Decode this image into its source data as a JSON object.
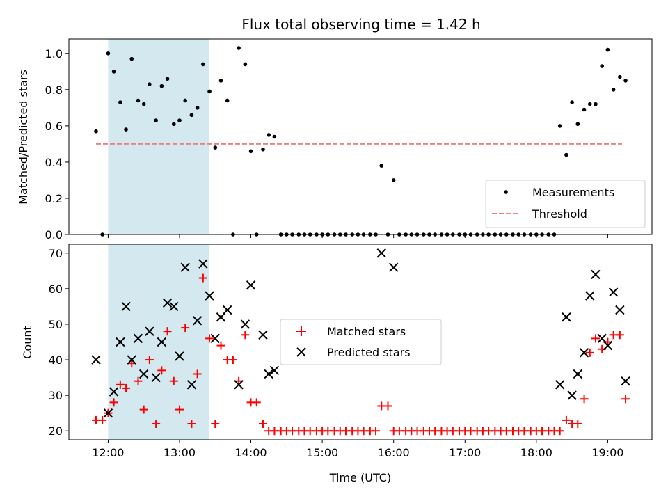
{
  "chart_data": {
    "title": "Flux total observing time = 1.42 h",
    "xlabel": "Time (UTC)",
    "x_tick_labels": [
      "12:00",
      "13:00",
      "14:00",
      "15:00",
      "16:00",
      "17:00",
      "18:00",
      "19:00"
    ],
    "x_ticks": [
      12,
      13,
      14,
      15,
      16,
      17,
      18,
      19
    ],
    "xlim": [
      11.45,
      19.62
    ],
    "shaded_interval": [
      12.0,
      13.42
    ],
    "shade_color": "#d3e9ef",
    "panels": [
      {
        "type": "scatter",
        "ylabel": "Matched/Predicted stars",
        "ylim": [
          0,
          1.08
        ],
        "y_ticks": [
          0.0,
          0.2,
          0.4,
          0.6,
          0.8,
          1.0
        ],
        "y_tick_labels": [
          "0.0",
          "0.2",
          "0.4",
          "0.6",
          "0.8",
          "1.0"
        ],
        "legend_position": "lower-right",
        "threshold": {
          "name": "Threshold",
          "value": 0.5,
          "x_range": [
            11.83,
            19.2
          ],
          "color": "#f08080"
        },
        "series": [
          {
            "name": "Measurements",
            "color": "#000000",
            "points": [
              [
                11.83,
                0.57
              ],
              [
                11.92,
                0
              ],
              [
                12.0,
                1.0
              ],
              [
                12.08,
                0.9
              ],
              [
                12.17,
                0.73
              ],
              [
                12.25,
                0.58
              ],
              [
                12.33,
                0.97
              ],
              [
                12.42,
                0.74
              ],
              [
                12.5,
                0.72
              ],
              [
                12.58,
                0.83
              ],
              [
                12.67,
                0.63
              ],
              [
                12.75,
                0.82
              ],
              [
                12.83,
                0.86
              ],
              [
                12.92,
                0.61
              ],
              [
                13.0,
                0.63
              ],
              [
                13.08,
                0.74
              ],
              [
                13.17,
                0.66
              ],
              [
                13.25,
                0.7
              ],
              [
                13.33,
                0.94
              ],
              [
                13.42,
                0.79
              ],
              [
                13.5,
                0.48
              ],
              [
                13.58,
                0.85
              ],
              [
                13.67,
                0.74
              ],
              [
                13.75,
                0
              ],
              [
                13.83,
                1.03
              ],
              [
                13.92,
                0.94
              ],
              [
                14.0,
                0.46
              ],
              [
                14.08,
                0
              ],
              [
                14.17,
                0.47
              ],
              [
                14.25,
                0.55
              ],
              [
                14.33,
                0.54
              ],
              [
                14.42,
                0
              ],
              [
                14.5,
                0
              ],
              [
                14.58,
                0
              ],
              [
                14.67,
                0
              ],
              [
                14.75,
                0
              ],
              [
                14.83,
                0
              ],
              [
                14.92,
                0
              ],
              [
                15.0,
                0
              ],
              [
                15.08,
                0
              ],
              [
                15.17,
                0
              ],
              [
                15.25,
                0
              ],
              [
                15.33,
                0
              ],
              [
                15.42,
                0
              ],
              [
                15.5,
                0
              ],
              [
                15.58,
                0
              ],
              [
                15.67,
                0
              ],
              [
                15.75,
                0
              ],
              [
                15.83,
                0.38
              ],
              [
                15.92,
                0
              ],
              [
                16.0,
                0.3
              ],
              [
                16.08,
                0
              ],
              [
                16.17,
                0
              ],
              [
                16.25,
                0
              ],
              [
                16.33,
                0
              ],
              [
                16.42,
                0
              ],
              [
                16.5,
                0
              ],
              [
                16.58,
                0
              ],
              [
                16.67,
                0
              ],
              [
                16.75,
                0
              ],
              [
                16.83,
                0
              ],
              [
                16.92,
                0
              ],
              [
                17.0,
                0
              ],
              [
                17.08,
                0
              ],
              [
                17.17,
                0
              ],
              [
                17.25,
                0
              ],
              [
                17.33,
                0
              ],
              [
                17.42,
                0
              ],
              [
                17.5,
                0
              ],
              [
                17.58,
                0
              ],
              [
                17.67,
                0
              ],
              [
                17.75,
                0
              ],
              [
                17.83,
                0
              ],
              [
                17.92,
                0
              ],
              [
                18.0,
                0
              ],
              [
                18.08,
                0
              ],
              [
                18.17,
                0
              ],
              [
                18.25,
                0
              ],
              [
                18.33,
                0.6
              ],
              [
                18.42,
                0.44
              ],
              [
                18.5,
                0.73
              ],
              [
                18.58,
                0.61
              ],
              [
                18.67,
                0.69
              ],
              [
                18.75,
                0.72
              ],
              [
                18.83,
                0.72
              ],
              [
                18.92,
                0.93
              ],
              [
                19.0,
                1.02
              ],
              [
                19.08,
                0.8
              ],
              [
                19.17,
                0.87
              ],
              [
                19.25,
                0.85
              ]
            ]
          }
        ]
      },
      {
        "type": "scatter",
        "ylabel": "Count",
        "ylim": [
          17.5,
          72.5
        ],
        "y_ticks": [
          20,
          30,
          40,
          50,
          60,
          70
        ],
        "y_tick_labels": [
          "20",
          "30",
          "40",
          "50",
          "60",
          "70"
        ],
        "legend_position": "center",
        "series": [
          {
            "name": "Matched stars",
            "marker": "+",
            "color": "#ff0000",
            "points": [
              [
                11.83,
                23
              ],
              [
                11.92,
                23
              ],
              [
                12.0,
                25
              ],
              [
                12.08,
                28
              ],
              [
                12.17,
                33
              ],
              [
                12.25,
                32
              ],
              [
                12.33,
                39
              ],
              [
                12.42,
                34
              ],
              [
                12.5,
                26
              ],
              [
                12.58,
                40
              ],
              [
                12.67,
                22
              ],
              [
                12.75,
                37
              ],
              [
                12.83,
                48
              ],
              [
                12.92,
                34
              ],
              [
                13.0,
                26
              ],
              [
                13.08,
                49
              ],
              [
                13.17,
                22
              ],
              [
                13.25,
                36
              ],
              [
                13.33,
                63
              ],
              [
                13.42,
                46
              ],
              [
                13.5,
                22
              ],
              [
                13.58,
                44
              ],
              [
                13.67,
                40
              ],
              [
                13.75,
                40
              ],
              [
                13.83,
                34
              ],
              [
                13.92,
                47
              ],
              [
                14.0,
                28
              ],
              [
                14.08,
                28
              ],
              [
                14.17,
                22
              ],
              [
                14.25,
                20
              ],
              [
                14.33,
                20
              ],
              [
                14.42,
                20
              ],
              [
                14.5,
                20
              ],
              [
                14.58,
                20
              ],
              [
                14.67,
                20
              ],
              [
                14.75,
                20
              ],
              [
                14.83,
                20
              ],
              [
                14.92,
                20
              ],
              [
                15.0,
                20
              ],
              [
                15.08,
                20
              ],
              [
                15.17,
                20
              ],
              [
                15.25,
                20
              ],
              [
                15.33,
                20
              ],
              [
                15.42,
                20
              ],
              [
                15.5,
                20
              ],
              [
                15.58,
                20
              ],
              [
                15.67,
                20
              ],
              [
                15.75,
                20
              ],
              [
                15.83,
                27
              ],
              [
                15.92,
                27
              ],
              [
                16.0,
                20
              ],
              [
                16.08,
                20
              ],
              [
                16.17,
                20
              ],
              [
                16.25,
                20
              ],
              [
                16.33,
                20
              ],
              [
                16.42,
                20
              ],
              [
                16.5,
                20
              ],
              [
                16.58,
                20
              ],
              [
                16.67,
                20
              ],
              [
                16.75,
                20
              ],
              [
                16.83,
                20
              ],
              [
                16.92,
                20
              ],
              [
                17.0,
                20
              ],
              [
                17.08,
                20
              ],
              [
                17.17,
                20
              ],
              [
                17.25,
                20
              ],
              [
                17.33,
                20
              ],
              [
                17.42,
                20
              ],
              [
                17.5,
                20
              ],
              [
                17.58,
                20
              ],
              [
                17.67,
                20
              ],
              [
                17.75,
                20
              ],
              [
                17.83,
                20
              ],
              [
                17.92,
                20
              ],
              [
                18.0,
                20
              ],
              [
                18.08,
                20
              ],
              [
                18.17,
                20
              ],
              [
                18.25,
                20
              ],
              [
                18.33,
                20
              ],
              [
                18.42,
                23
              ],
              [
                18.5,
                22
              ],
              [
                18.58,
                22
              ],
              [
                18.67,
                29
              ],
              [
                18.75,
                42
              ],
              [
                18.83,
                46
              ],
              [
                18.92,
                43
              ],
              [
                19.0,
                45
              ],
              [
                19.08,
                47
              ],
              [
                19.17,
                47
              ],
              [
                19.25,
                29
              ]
            ]
          },
          {
            "name": "Predicted stars",
            "marker": "x",
            "color": "#000000",
            "points": [
              [
                11.83,
                40
              ],
              [
                12.0,
                25
              ],
              [
                12.08,
                31
              ],
              [
                12.17,
                45
              ],
              [
                12.25,
                55
              ],
              [
                12.33,
                40
              ],
              [
                12.42,
                46
              ],
              [
                12.5,
                36
              ],
              [
                12.58,
                48
              ],
              [
                12.67,
                35
              ],
              [
                12.75,
                45
              ],
              [
                12.83,
                56
              ],
              [
                12.92,
                55
              ],
              [
                13.0,
                41
              ],
              [
                13.08,
                66
              ],
              [
                13.17,
                33
              ],
              [
                13.25,
                51
              ],
              [
                13.33,
                67
              ],
              [
                13.42,
                58
              ],
              [
                13.5,
                46
              ],
              [
                13.58,
                52
              ],
              [
                13.67,
                54
              ],
              [
                13.83,
                33
              ],
              [
                13.92,
                50
              ],
              [
                14.0,
                61
              ],
              [
                14.17,
                47
              ],
              [
                14.25,
                36
              ],
              [
                14.33,
                37
              ],
              [
                15.83,
                70
              ],
              [
                16.0,
                66
              ],
              [
                18.33,
                33
              ],
              [
                18.42,
                52
              ],
              [
                18.5,
                30
              ],
              [
                18.58,
                36
              ],
              [
                18.67,
                42
              ],
              [
                18.75,
                58
              ],
              [
                18.83,
                64
              ],
              [
                18.92,
                46
              ],
              [
                19.0,
                44
              ],
              [
                19.08,
                59
              ],
              [
                19.17,
                54
              ],
              [
                19.25,
                34
              ]
            ]
          }
        ]
      }
    ]
  }
}
